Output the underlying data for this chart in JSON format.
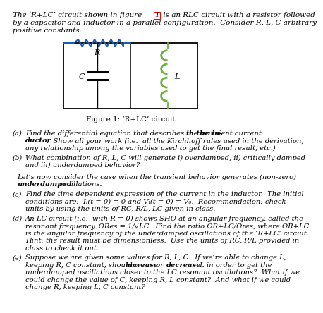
{
  "background_color": "#ffffff",
  "intro_line1": "The ‘R+LC’ circuit shown in figure ",
  "intro_fig_num": "1",
  "intro_line1b": " is an RLC circuit with a resistor followed",
  "intro_line2": "by a capacitor and inductor in a parallel configuration.  Consider R, L, C arbitrary",
  "intro_line3": "positive constants.",
  "figure_label": "Figure 1: ‘R+LC’ circuit",
  "resistor_color": "#1a5cb0",
  "inductor_color": "#6db33f",
  "q_a_label": "(a)",
  "q_a_text1": "Find the differential equation that describes the transient current ",
  "q_a_bold": "in the in-",
  "q_a_text2": "ductor",
  "q_a_text3": ".  Show all your work (i.e.  all the Kirchhoff rules used in the derivation,",
  "q_a_text4": "any relationship among the variables used to get the final result, etc.)",
  "q_b_label": "(b)",
  "q_b_text": "What combination of R, L, C will generate i) overdamped, ii) critically damped\nand iii) underdamped behavior?",
  "q_interlude1": "Let’s now consider the case when the transient behavior generates (non-zero)",
  "q_interlude2_bold": "underdamped",
  "q_interlude2_rest": " oscillations.",
  "q_c_label": "(c)",
  "q_c_text": "Find the time dependent expression of the current in the inductor.  The initial\nconditions are:  Iₗ(t = 0) = 0 and Vₗ(t = 0) = V₀.  Recommendation: check\nunits by using the units of RC, R/L, LC given in class.",
  "q_d_label": "(d)",
  "q_d_text": "An LC circuit (i.e.  with R = 0) shows SHO at an angular frequency, called the\nresonant frequency, ΩRes = 1/√LC.  Find the ratio ΩR+LC/Ωres, where ΩR+LC\nis the angular frequency of the underdamped oscillations of the ‘R+LC’ circuit.\nHint: the result must be dimensionless.  Use the units of RC, R/L provided in\nclass to check it out.",
  "q_e_label": "(e)",
  "q_e_text1": "Suppose we are given some values for R, L, C.  If we’re able to change L,\nkeeping R, C constant, should we ",
  "q_e_bold1": "increase",
  "q_e_text2": " or ",
  "q_e_bold2": "decrease",
  "q_e_text3": " L in order to get the\nunderdamped oscillations closer to the LC resonant oscillations?  What if we\ncould change the value of C, keeping R, L constant?  And what if we could\nchange R, keeping L, C constant?"
}
